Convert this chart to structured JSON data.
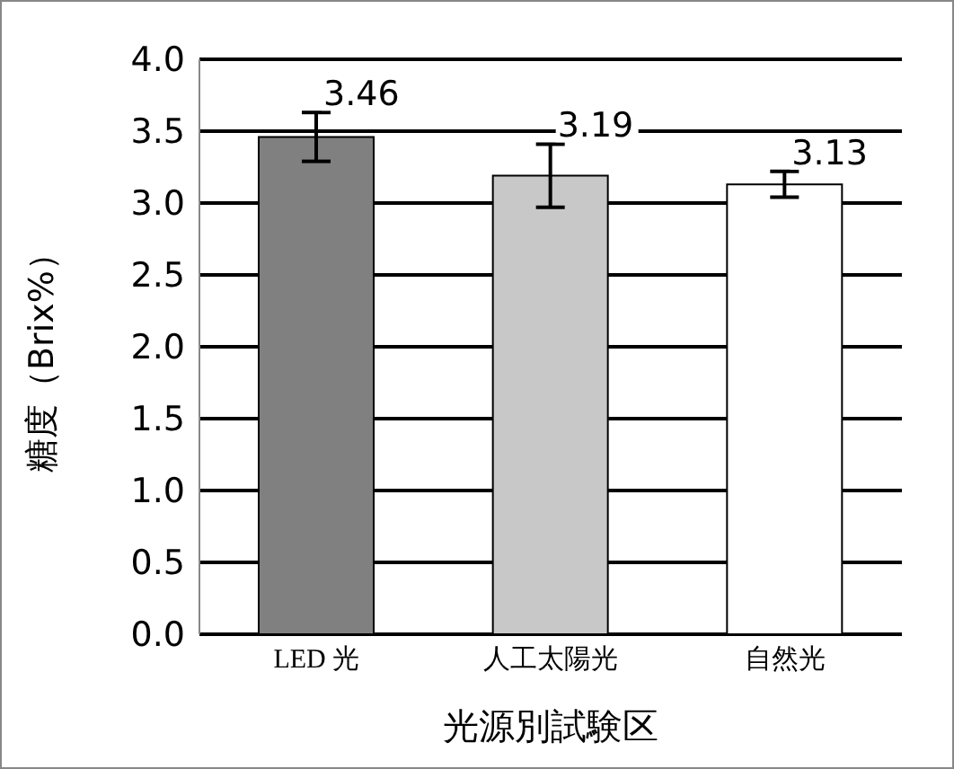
{
  "chart_data": {
    "type": "bar",
    "xlabel": "光源別試験区",
    "ylabel": "糖度（Brix%）",
    "categories": [
      "LED 光",
      "人工太陽光",
      "自然光"
    ],
    "values": [
      3.46,
      3.19,
      3.13
    ],
    "errors": [
      0.17,
      0.22,
      0.09
    ],
    "colors": [
      "#808080",
      "#c8c8c8",
      "#ffffff"
    ],
    "ylim": [
      0,
      4
    ],
    "yticks": [
      {
        "value": 0,
        "label": "0.0"
      },
      0.5,
      {
        "value": 1,
        "label": "1.0"
      },
      1.5,
      {
        "value": 2,
        "label": "2.0"
      },
      2.5,
      {
        "value": 3,
        "label": "3.0"
      },
      3.5,
      {
        "value": 4,
        "label": "4.0"
      }
    ],
    "grid": "y",
    "data_labels": true
  }
}
